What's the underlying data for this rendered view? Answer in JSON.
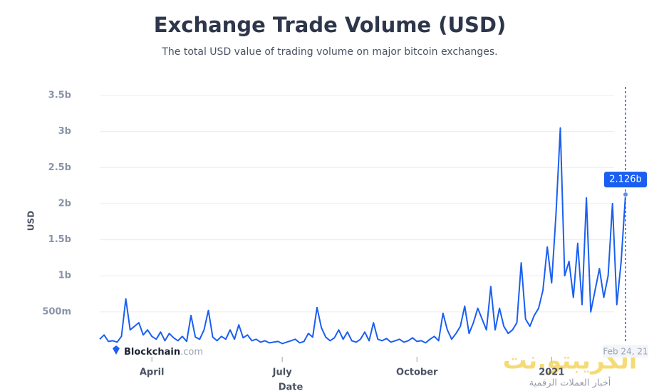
{
  "chart_data": {
    "type": "line",
    "title": "Exchange Trade Volume (USD)",
    "subtitle": "The total USD value of trading volume on major bitcoin exchanges.",
    "y_label": "USD",
    "x_label": "Date",
    "color": "#1a5ff0",
    "grid": true,
    "ylim": [
      0,
      3500000000.0
    ],
    "yticks": [
      {
        "value": 500000000.0,
        "label": "500m"
      },
      {
        "value": 1000000000.0,
        "label": "1b"
      },
      {
        "value": 1500000000.0,
        "label": "1.5b"
      },
      {
        "value": 2000000000.0,
        "label": "2b"
      },
      {
        "value": 2500000000.0,
        "label": "2.5b"
      },
      {
        "value": 3000000000.0,
        "label": "3b"
      },
      {
        "value": 3500000000.0,
        "label": "3.5b"
      }
    ],
    "categories": [
      null,
      null,
      null,
      null,
      null,
      null,
      null,
      null,
      null,
      null,
      null,
      null,
      "April",
      null,
      null,
      null,
      null,
      null,
      null,
      null,
      null,
      null,
      null,
      null,
      null,
      null,
      null,
      null,
      null,
      null,
      null,
      null,
      null,
      null,
      null,
      null,
      null,
      null,
      null,
      null,
      null,
      null,
      "July",
      null,
      null,
      null,
      null,
      null,
      null,
      null,
      null,
      null,
      null,
      null,
      null,
      null,
      null,
      null,
      null,
      null,
      null,
      null,
      null,
      null,
      null,
      null,
      null,
      null,
      null,
      null,
      null,
      null,
      null,
      "October",
      null,
      null,
      null,
      null,
      null,
      null,
      null,
      null,
      null,
      null,
      null,
      null,
      null,
      null,
      null,
      null,
      null,
      null,
      null,
      null,
      null,
      null,
      null,
      null,
      null,
      null,
      null,
      null,
      null,
      null,
      "2021",
      null,
      null,
      null,
      null,
      null,
      null,
      null,
      null,
      null,
      null,
      null,
      null,
      null,
      null,
      null,
      null,
      "Feb 24, 21"
    ],
    "values": [
      120000000.0,
      180000000.0,
      90000000.0,
      100000000.0,
      80000000.0,
      160000000.0,
      680000000.0,
      250000000.0,
      300000000.0,
      350000000.0,
      180000000.0,
      250000000.0,
      160000000.0,
      120000000.0,
      220000000.0,
      100000000.0,
      200000000.0,
      140000000.0,
      100000000.0,
      160000000.0,
      90000000.0,
      450000000.0,
      150000000.0,
      120000000.0,
      250000000.0,
      520000000.0,
      150000000.0,
      100000000.0,
      160000000.0,
      120000000.0,
      250000000.0,
      120000000.0,
      320000000.0,
      140000000.0,
      180000000.0,
      100000000.0,
      120000000.0,
      80000000.0,
      100000000.0,
      70000000.0,
      80000000.0,
      90000000.0,
      60000000.0,
      80000000.0,
      100000000.0,
      120000000.0,
      70000000.0,
      90000000.0,
      200000000.0,
      150000000.0,
      560000000.0,
      280000000.0,
      150000000.0,
      100000000.0,
      140000000.0,
      250000000.0,
      120000000.0,
      220000000.0,
      100000000.0,
      80000000.0,
      120000000.0,
      220000000.0,
      100000000.0,
      350000000.0,
      120000000.0,
      100000000.0,
      130000000.0,
      80000000.0,
      100000000.0,
      120000000.0,
      80000000.0,
      100000000.0,
      140000000.0,
      90000000.0,
      100000000.0,
      70000000.0,
      120000000.0,
      160000000.0,
      100000000.0,
      480000000.0,
      250000000.0,
      120000000.0,
      200000000.0,
      300000000.0,
      580000000.0,
      200000000.0,
      350000000.0,
      550000000.0,
      400000000.0,
      250000000.0,
      850000000.0,
      250000000.0,
      550000000.0,
      300000000.0,
      200000000.0,
      250000000.0,
      350000000.0,
      1180000000.0,
      400000000.0,
      300000000.0,
      450000000.0,
      550000000.0,
      800000000.0,
      1400000000.0,
      900000000.0,
      1850000000.0,
      3050000000.0,
      1000000000.0,
      1200000000.0,
      700000000.0,
      1450000000.0,
      600000000.0,
      2080000000.0,
      500000000.0,
      800000000.0,
      1100000000.0,
      700000000.0,
      1000000000.0,
      2000000000.0,
      600000000.0,
      1200000000.0,
      2126000000.0
    ],
    "value_labels": [
      null,
      null,
      null,
      null,
      null,
      null,
      null,
      null,
      null,
      null,
      null,
      null,
      null,
      null,
      null,
      null,
      null,
      null,
      null,
      null,
      null,
      null,
      null,
      null,
      null,
      null,
      null,
      null,
      null,
      null,
      null,
      null,
      null,
      null,
      null,
      null,
      null,
      null,
      null,
      null,
      null,
      null,
      null,
      null,
      null,
      null,
      null,
      null,
      null,
      null,
      null,
      null,
      null,
      null,
      null,
      null,
      null,
      null,
      null,
      null,
      null,
      null,
      null,
      null,
      null,
      null,
      null,
      null,
      null,
      null,
      null,
      null,
      null,
      null,
      null,
      null,
      null,
      null,
      null,
      null,
      null,
      null,
      null,
      null,
      null,
      null,
      null,
      null,
      null,
      null,
      null,
      null,
      null,
      null,
      null,
      null,
      null,
      null,
      null,
      null,
      null,
      null,
      null,
      null,
      null,
      null,
      null,
      null,
      null,
      null,
      null,
      null,
      null,
      null,
      null,
      null,
      null,
      null,
      null,
      null,
      null,
      "2.126b"
    ]
  },
  "brand": {
    "name": "Blockchain",
    "suffix": ".com"
  },
  "watermark": {
    "name": "الكريبتو.نت",
    "tagline": "أخبار العملات الرقمية"
  }
}
